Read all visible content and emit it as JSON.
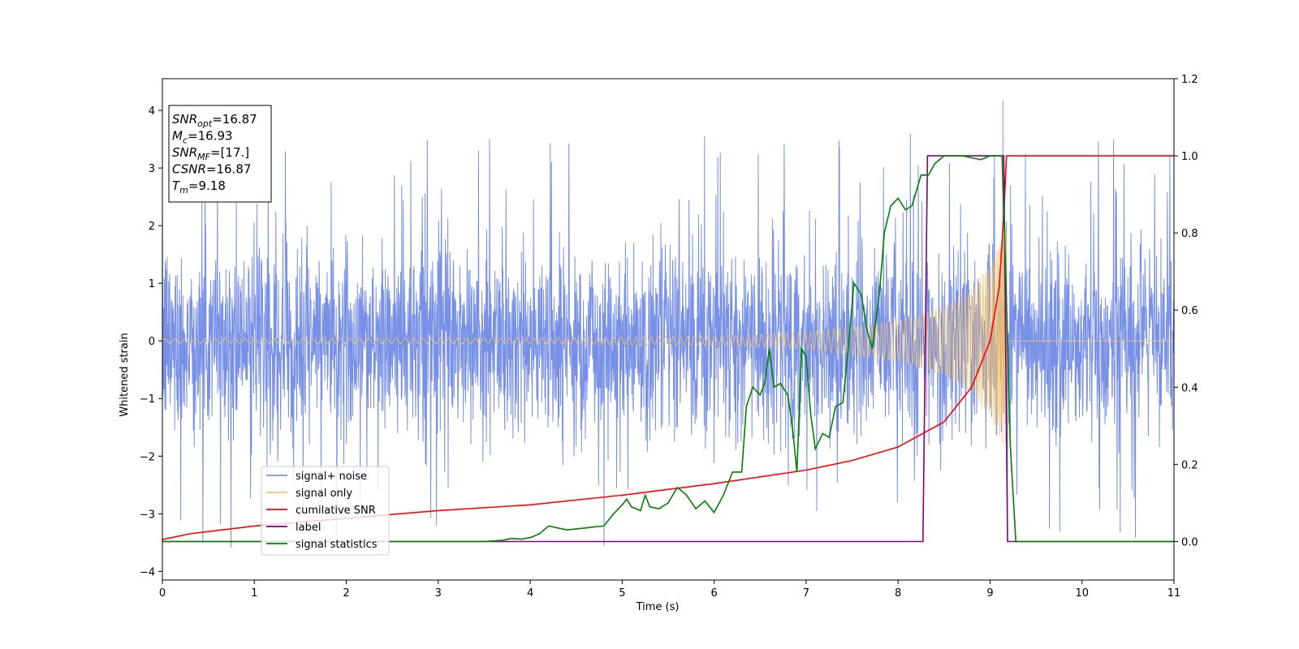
{
  "chart_data": {
    "type": "line",
    "xlabel": "Time (s)",
    "ylabel": "Whitened strain",
    "xlim": [
      0,
      11
    ],
    "ylim": [
      -4.15,
      4.55
    ],
    "y2lim": [
      -0.1,
      1.2
    ],
    "xticks": [
      "0",
      "1",
      "2",
      "3",
      "4",
      "5",
      "6",
      "7",
      "8",
      "9",
      "10",
      "11"
    ],
    "yticks": [
      "−4",
      "−3",
      "−2",
      "−1",
      "0",
      "1",
      "2",
      "3",
      "4"
    ],
    "y2ticks": [
      "0.0",
      "0.2",
      "0.4",
      "0.6",
      "0.8",
      "1.0",
      "1.2"
    ],
    "annotation": [
      {
        "main": "SNR",
        "sub": "opt",
        "rest": "=16.87"
      },
      {
        "main": "M",
        "sub": "c",
        "rest": "=16.93"
      },
      {
        "main": "SNR",
        "sub": "MF",
        "rest": "=[17.]"
      },
      {
        "main": "CSNR",
        "sub": "",
        "rest": "=16.87"
      },
      {
        "main": "T",
        "sub": "m",
        "rest": "=9.18"
      }
    ],
    "legend_position": "lower left",
    "series": [
      {
        "name": "signal+ noise",
        "axis": "left",
        "color": "#7890e6",
        "style": "noisy band",
        "envelope_abs": 2.2,
        "spike_max": 4.17,
        "x_range": [
          0,
          11
        ]
      },
      {
        "name": "signal only",
        "axis": "left",
        "color": "#f5c36a",
        "style": "chirp",
        "amplitude": [
          [
            0,
            0.04
          ],
          [
            4,
            0.05
          ],
          [
            6,
            0.08
          ],
          [
            7,
            0.15
          ],
          [
            8,
            0.35
          ],
          [
            8.5,
            0.6
          ],
          [
            8.8,
            0.9
          ],
          [
            9.0,
            1.3
          ],
          [
            9.1,
            1.7
          ],
          [
            9.18,
            2.0
          ]
        ],
        "end_time": 9.18,
        "x_range": [
          0,
          11
        ]
      },
      {
        "name": "cumilative SNR",
        "axis": "right",
        "color": "#ff0000",
        "points": [
          [
            0,
            0.005
          ],
          [
            0.3,
            0.02
          ],
          [
            1,
            0.04
          ],
          [
            2,
            0.06
          ],
          [
            3,
            0.08
          ],
          [
            4,
            0.095
          ],
          [
            5,
            0.12
          ],
          [
            6,
            0.15
          ],
          [
            7,
            0.185
          ],
          [
            7.5,
            0.21
          ],
          [
            8,
            0.245
          ],
          [
            8.5,
            0.31
          ],
          [
            8.8,
            0.4
          ],
          [
            9.0,
            0.52
          ],
          [
            9.1,
            0.66
          ],
          [
            9.15,
            0.85
          ],
          [
            9.18,
            1.0
          ],
          [
            11,
            1.0
          ]
        ]
      },
      {
        "name": "label",
        "axis": "right",
        "color": "#800080",
        "points": [
          [
            0,
            0.0
          ],
          [
            8.27,
            0.0
          ],
          [
            8.32,
            1.0
          ],
          [
            9.15,
            1.0
          ],
          [
            9.19,
            0.0
          ],
          [
            11,
            0.0
          ]
        ]
      },
      {
        "name": "signal statistics",
        "axis": "right",
        "color": "#008000",
        "points": [
          [
            0,
            0.0
          ],
          [
            3.5,
            0.0
          ],
          [
            3.7,
            0.003
          ],
          [
            3.8,
            0.008
          ],
          [
            3.9,
            0.006
          ],
          [
            4.0,
            0.01
          ],
          [
            4.1,
            0.02
          ],
          [
            4.2,
            0.04
          ],
          [
            4.3,
            0.035
          ],
          [
            4.4,
            0.03
          ],
          [
            4.6,
            0.035
          ],
          [
            4.7,
            0.038
          ],
          [
            4.8,
            0.04
          ],
          [
            4.9,
            0.07
          ],
          [
            5.0,
            0.095
          ],
          [
            5.05,
            0.11
          ],
          [
            5.1,
            0.09
          ],
          [
            5.2,
            0.08
          ],
          [
            5.25,
            0.12
          ],
          [
            5.3,
            0.09
          ],
          [
            5.4,
            0.085
          ],
          [
            5.5,
            0.1
          ],
          [
            5.6,
            0.14
          ],
          [
            5.7,
            0.12
          ],
          [
            5.8,
            0.085
          ],
          [
            5.9,
            0.105
          ],
          [
            6.0,
            0.075
          ],
          [
            6.1,
            0.12
          ],
          [
            6.2,
            0.18
          ],
          [
            6.3,
            0.18
          ],
          [
            6.35,
            0.35
          ],
          [
            6.42,
            0.4
          ],
          [
            6.5,
            0.38
          ],
          [
            6.55,
            0.41
          ],
          [
            6.6,
            0.5
          ],
          [
            6.65,
            0.4
          ],
          [
            6.72,
            0.41
          ],
          [
            6.8,
            0.38
          ],
          [
            6.85,
            0.3
          ],
          [
            6.9,
            0.18
          ],
          [
            6.95,
            0.5
          ],
          [
            7.0,
            0.48
          ],
          [
            7.05,
            0.33
          ],
          [
            7.1,
            0.24
          ],
          [
            7.18,
            0.28
          ],
          [
            7.25,
            0.27
          ],
          [
            7.32,
            0.35
          ],
          [
            7.4,
            0.36
          ],
          [
            7.45,
            0.48
          ],
          [
            7.52,
            0.67
          ],
          [
            7.6,
            0.64
          ],
          [
            7.66,
            0.55
          ],
          [
            7.72,
            0.5
          ],
          [
            7.8,
            0.65
          ],
          [
            7.85,
            0.8
          ],
          [
            7.92,
            0.87
          ],
          [
            8.0,
            0.89
          ],
          [
            8.08,
            0.86
          ],
          [
            8.15,
            0.87
          ],
          [
            8.25,
            0.95
          ],
          [
            8.33,
            0.95
          ],
          [
            8.4,
            0.98
          ],
          [
            8.5,
            1.0
          ],
          [
            8.6,
            1.0
          ],
          [
            8.7,
            1.0
          ],
          [
            8.8,
            0.995
          ],
          [
            8.9,
            0.99
          ],
          [
            9.0,
            1.0
          ],
          [
            9.1,
            1.0
          ],
          [
            9.13,
            1.0
          ],
          [
            9.17,
            0.7
          ],
          [
            9.22,
            0.25
          ],
          [
            9.28,
            0.0
          ],
          [
            11,
            0.0
          ]
        ]
      }
    ]
  }
}
